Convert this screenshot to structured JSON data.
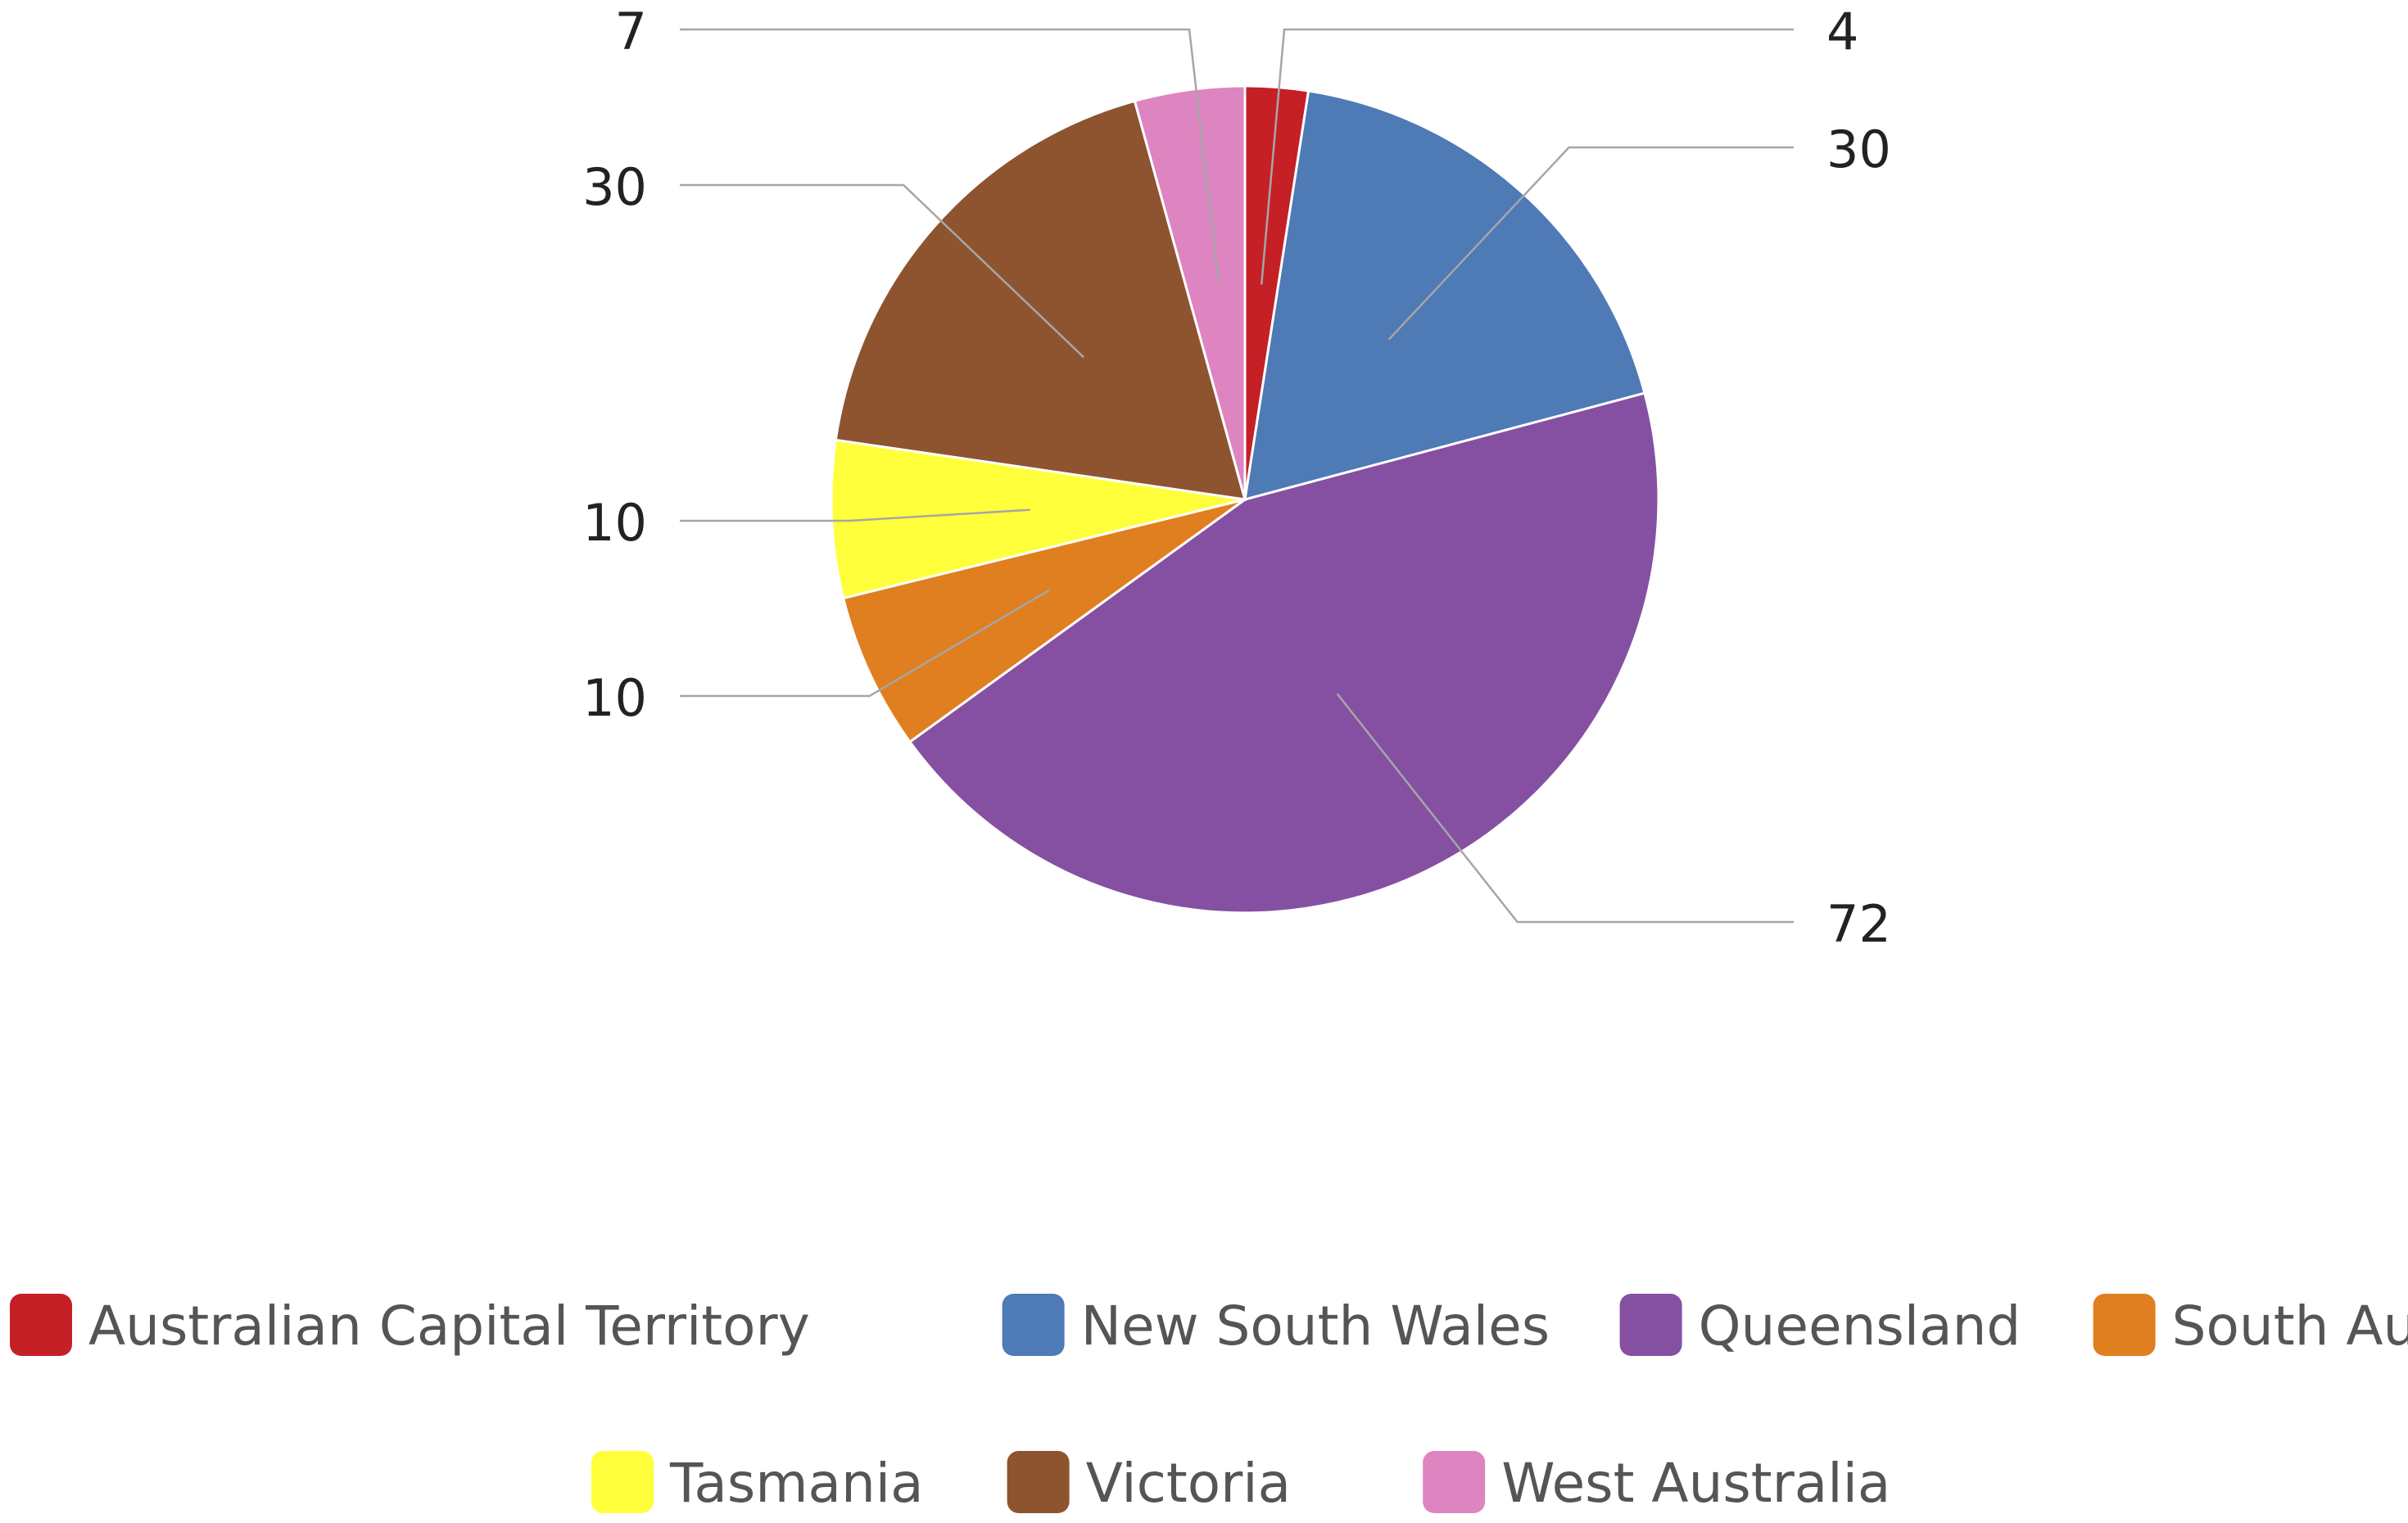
{
  "chart_data": {
    "type": "pie",
    "title": "",
    "categories": [
      "Australian Capital Territory",
      "New South Wales",
      "Queensland",
      "South Australia",
      "Tasmania",
      "Victoria",
      "West Australia"
    ],
    "values": [
      4,
      30,
      72,
      10,
      10,
      30,
      7
    ],
    "colors": [
      "#c42026",
      "#4e7ab5",
      "#8550a2",
      "#e07f1f",
      "#ffff3b",
      "#8e5430",
      "#de84c1"
    ],
    "data_labels": [
      "4",
      "30",
      "72",
      "10",
      "10",
      "30",
      "7"
    ],
    "legend": {
      "placement": "bottom",
      "entries": [
        "Australian Capital Territory",
        "New South Wales",
        "Queensland",
        "South Australia",
        "Tasmania",
        "Victoria",
        "West Australia"
      ]
    },
    "start_angle_deg": 0,
    "direction": "clockwise"
  }
}
